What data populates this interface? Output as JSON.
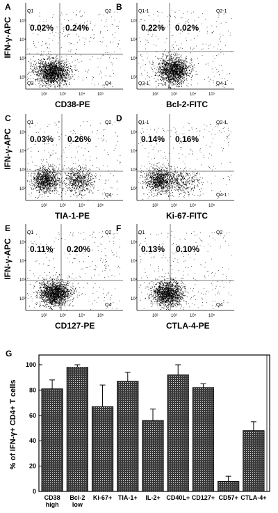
{
  "chart_data": [
    {
      "type": "scatter",
      "panel": "A",
      "xlabel": "CD38-PE",
      "ylabel": "IFN-γ-APC",
      "quadrants": {
        "ul": "Q1",
        "ur": "Q2",
        "ll": "Q3",
        "lr": "Q4"
      },
      "percentages": {
        "ul": "0.02%",
        "ur": "0.24%"
      }
    },
    {
      "type": "scatter",
      "panel": "B",
      "xlabel": "Bcl-2-FITC",
      "ylabel": "",
      "quadrants": {
        "ul": "Q1-1",
        "ur": "Q2-1",
        "ll": "Q3-1",
        "lr": "Q4-1"
      },
      "percentages": {
        "ul": "0.22%",
        "ur": "0.02%"
      }
    },
    {
      "type": "scatter",
      "panel": "C",
      "xlabel": "TIA-1-PE",
      "ylabel": "IFN-γ-APC",
      "quadrants": {
        "ul": "Q1",
        "ur": "Q2",
        "ll": "",
        "lr": "Q4"
      },
      "percentages": {
        "ul": "0.03%",
        "ur": "0.26%"
      }
    },
    {
      "type": "scatter",
      "panel": "D",
      "xlabel": "Ki-67-FITC",
      "ylabel": "",
      "quadrants": {
        "ul": "Q1-1",
        "ur": "Q2-1",
        "ll": "",
        "lr": "Q4-1"
      },
      "percentages": {
        "ul": "0.14%",
        "ur": "0.16%"
      }
    },
    {
      "type": "scatter",
      "panel": "E",
      "xlabel": "CD127-PE",
      "ylabel": "IFN-γ-APC",
      "quadrants": {
        "ul": "Q1",
        "ur": "Q2",
        "ll": "",
        "lr": "Q4"
      },
      "percentages": {
        "ul": "0.11%",
        "ur": "0.20%"
      }
    },
    {
      "type": "scatter",
      "panel": "F",
      "xlabel": "CTLA-4-PE",
      "ylabel": "",
      "quadrants": {
        "ul": "Q1",
        "ur": "Q2",
        "ll": "",
        "lr": "Q4"
      },
      "percentages": {
        "ul": "0.13%",
        "ur": "0.10%"
      }
    },
    {
      "type": "bar",
      "panel": "G",
      "ylabel": "% of IFN-γ+ CD4+ T cells",
      "ylim": [
        0,
        100
      ],
      "yticks": [
        0,
        20,
        40,
        60,
        80,
        100
      ],
      "categories": [
        "CD38\nhigh",
        "Bcl-2\nlow",
        "Ki-67+",
        "TIA-1+",
        "IL-2+",
        "CD40L+",
        "CD127+",
        "CD57+",
        "CTLA-4+"
      ],
      "values": [
        81,
        98,
        67,
        87,
        56,
        92,
        82,
        8,
        48
      ],
      "errors": [
        7,
        2,
        17,
        7,
        9,
        8,
        3,
        4,
        7
      ]
    }
  ]
}
